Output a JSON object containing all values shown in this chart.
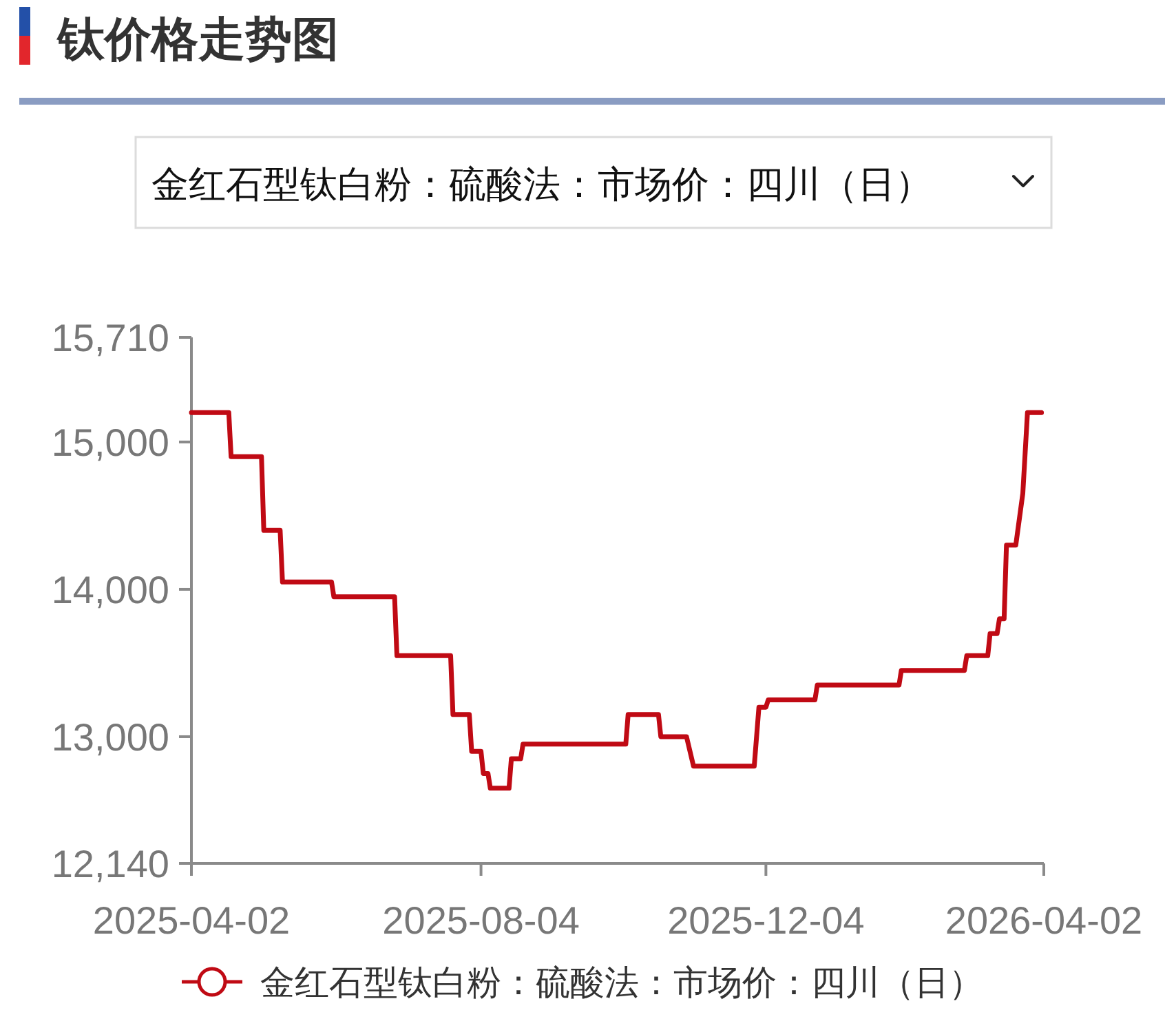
{
  "chart_data": {
    "type": "line",
    "title": "钛价格走势图",
    "subtitle": "金红石型钛白粉：硫酸法：市场价：四川（日）",
    "x": [
      "2025-04-02",
      "2025-04-18",
      "2025-04-19",
      "2025-05-02",
      "2025-05-03",
      "2025-05-10",
      "2025-05-11",
      "2025-06-01",
      "2025-06-02",
      "2025-06-28",
      "2025-06-29",
      "2025-07-22",
      "2025-07-23",
      "2025-07-30",
      "2025-07-31",
      "2025-08-04",
      "2025-08-05",
      "2025-08-07",
      "2025-08-08",
      "2025-08-16",
      "2025-08-17",
      "2025-08-21",
      "2025-08-22",
      "2025-10-05",
      "2025-10-06",
      "2025-10-19",
      "2025-10-20",
      "2025-10-31",
      "2025-11-03",
      "2025-11-29",
      "2025-12-01",
      "2025-12-04",
      "2025-12-05",
      "2025-12-25",
      "2025-12-26",
      "2026-01-30",
      "2026-01-31",
      "2026-02-27",
      "2026-02-28",
      "2026-03-09",
      "2026-03-10",
      "2026-03-13",
      "2026-03-14",
      "2026-03-16",
      "2026-03-17",
      "2026-03-21",
      "2026-03-24",
      "2026-03-26",
      "2026-04-01"
    ],
    "series": [
      {
        "name": "金红石型钛白粉：硫酸法：市场价：四川（日）",
        "color": "#c00a14",
        "values": [
          15200,
          15200,
          14900,
          14900,
          14400,
          14400,
          14050,
          14050,
          13950,
          13950,
          13550,
          13550,
          13150,
          13150,
          12900,
          12900,
          12750,
          12750,
          12650,
          12650,
          12850,
          12850,
          12950,
          12950,
          13150,
          13150,
          13000,
          13000,
          12800,
          12800,
          13200,
          13200,
          13250,
          13250,
          13350,
          13350,
          13450,
          13450,
          13550,
          13550,
          13700,
          13700,
          13800,
          13800,
          14300,
          14300,
          14650,
          15200,
          15200
        ]
      }
    ],
    "xlim": [
      "2025-04-02",
      "2026-04-02"
    ],
    "xticks": [
      "2025-04-02",
      "2025-08-04",
      "2025-12-04",
      "2026-04-02"
    ],
    "ylim": [
      12140,
      15710
    ],
    "yticks": [
      {
        "value": 12140,
        "label": "12,140"
      },
      {
        "value": 13000,
        "label": "13,000"
      },
      {
        "value": 14000,
        "label": "14,000"
      },
      {
        "value": 15000,
        "label": "15,000"
      },
      {
        "value": 15710,
        "label": "15,710"
      }
    ],
    "legend": "bottom"
  }
}
